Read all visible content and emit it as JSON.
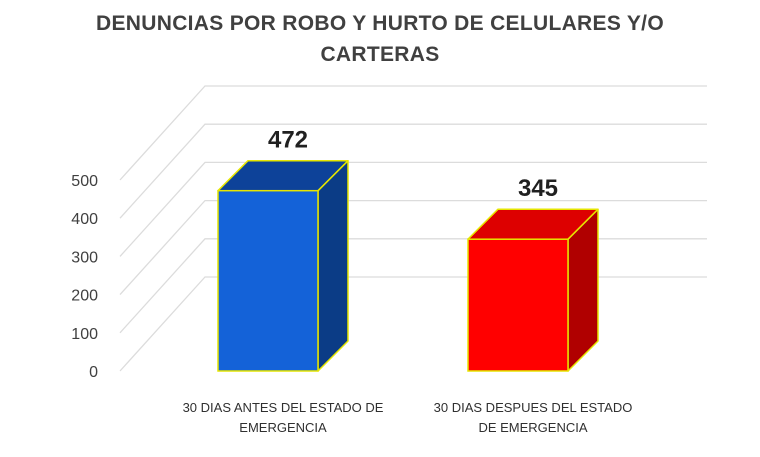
{
  "chart_data": {
    "type": "bar",
    "title_lines": [
      "DENUNCIAS POR ROBO Y HURTO DE CELULARES Y/O",
      "CARTERAS"
    ],
    "xlabel": "",
    "ylabel": "",
    "ylim": [
      0,
      500
    ],
    "yticks": [
      0,
      100,
      200,
      300,
      400,
      500
    ],
    "grid": true,
    "legend": "none",
    "categories": [
      [
        "30 DIAS ANTES DEL ESTADO DE",
        "EMERGENCIA"
      ],
      [
        "30 DIAS DESPUES DEL ESTADO",
        "DE EMERGENCIA"
      ]
    ],
    "values": [
      472,
      345
    ],
    "data_labels": [
      "472",
      "345"
    ],
    "colors": {
      "bars": [
        {
          "front": "#1462D8",
          "side": "#0B3C86",
          "top": "#0D4299"
        },
        {
          "front": "#FF0000",
          "side": "#B00000",
          "top": "#DD0000"
        }
      ],
      "edge": "#E6E600",
      "grid": "#DCDCDC",
      "text": "#404040"
    }
  }
}
